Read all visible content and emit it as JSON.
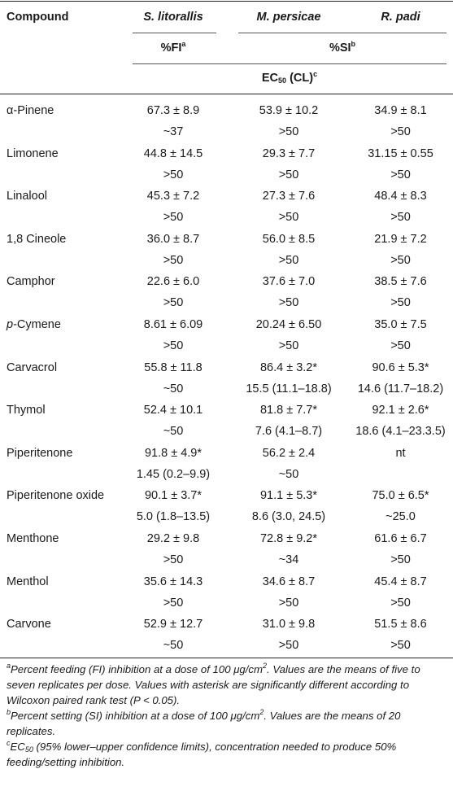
{
  "header": {
    "compound_label": "Compound",
    "species": [
      "S. litorallis",
      "M. persicae",
      "R. padi"
    ],
    "fi_label": "%FI",
    "fi_sup": "a",
    "si_label": "%SI",
    "si_sup": "b",
    "ec_label_pre": "EC",
    "ec_sub": "50",
    "ec_label_post": " (CL)",
    "ec_sup": "c"
  },
  "rows": [
    {
      "name": "α-Pinene",
      "s1": "67.3 ± 8.9",
      "s2": "~37",
      "m1": "53.9 ± 10.2",
      "m2": ">50",
      "r1": "34.9 ± 8.1",
      "r2": ">50"
    },
    {
      "name": "Limonene",
      "s1": "44.8 ± 14.5",
      "s2": ">50",
      "m1": "29.3 ± 7.7",
      "m2": ">50",
      "r1": "31.15 ± 0.55",
      "r2": ">50"
    },
    {
      "name": "Linalool",
      "s1": "45.3 ± 7.2",
      "s2": ">50",
      "m1": "27.3 ± 7.6",
      "m2": ">50",
      "r1": "48.4 ± 8.3",
      "r2": ">50"
    },
    {
      "name": "1,8 Cineole",
      "s1": "36.0 ± 8.7",
      "s2": ">50",
      "m1": "56.0 ± 8.5",
      "m2": ">50",
      "r1": "21.9 ± 7.2",
      "r2": ">50"
    },
    {
      "name": "Camphor",
      "s1": "22.6 ± 6.0",
      "s2": ">50",
      "m1": "37.6 ± 7.0",
      "m2": ">50",
      "r1": "38.5 ± 7.6",
      "r2": ">50"
    },
    {
      "name_prefix": "p",
      "name": "-Cymene",
      "s1": "8.61 ± 6.09",
      "s2": ">50",
      "m1": "20.24 ± 6.50",
      "m2": ">50",
      "r1": "35.0 ± 7.5",
      "r2": ">50"
    },
    {
      "name": "Carvacrol",
      "s1": "55.8 ± 11.8",
      "s2": "~50",
      "m1": "86.4 ± 3.2*",
      "m2": "15.5 (11.1–18.8)",
      "r1": "90.6 ± 5.3*",
      "r2": "14.6 (11.7–18.2)"
    },
    {
      "name": "Thymol",
      "s1": "52.4 ± 10.1",
      "s2": "~50",
      "m1": "81.8 ± 7.7*",
      "m2": "7.6 (4.1–8.7)",
      "r1": "92.1 ± 2.6*",
      "r2": "18.6 (4.1–23.3.5)"
    },
    {
      "name": "Piperitenone",
      "s1": "91.8 ± 4.9*",
      "s2": "1.45 (0.2–9.9)",
      "m1": "56.2 ± 2.4",
      "m2": "~50",
      "r1": "nt",
      "r2": ""
    },
    {
      "name": "Piperitenone oxide",
      "s1": "90.1 ± 3.7*",
      "s2": "5.0 (1.8–13.5)",
      "m1": "91.1 ± 5.3*",
      "m2": "8.6 (3.0, 24.5)",
      "r1": "75.0 ± 6.5*",
      "r2": "~25.0"
    },
    {
      "name": "Menthone",
      "s1": "29.2 ± 9.8",
      "s2": ">50",
      "m1": "72.8 ± 9.2*",
      "m2": "~34",
      "r1": "61.6 ± 6.7",
      "r2": ">50"
    },
    {
      "name": "Menthol",
      "s1": "35.6 ± 14.3",
      "s2": ">50",
      "m1": "34.6 ± 8.7",
      "m2": ">50",
      "r1": "45.4 ± 8.7",
      "r2": ">50"
    },
    {
      "name": "Carvone",
      "s1": "52.9 ± 12.7",
      "s2": "~50",
      "m1": "31.0 ± 9.8",
      "m2": ">50",
      "r1": "51.5 ± 8.6",
      "r2": ">50"
    }
  ],
  "footnotes": {
    "a": {
      "sup": "a",
      "p1": "Percent feeding (FI) inhibition at a dose of 100 μg/cm",
      "p1sup": "2",
      "p2": ". Values are the means of five to seven replicates per dose. Values with asterisk are significantly different according to Wilcoxon paired rank test (P < 0.05)."
    },
    "b": {
      "sup": "b",
      "p1": "Percent setting (SI) inhibition at a dose of 100 μg/cm",
      "p1sup": "2",
      "p2": ". Values are the means of 20 replicates."
    },
    "c": {
      "sup": "c",
      "p1": "EC",
      "p1sub": "50",
      "p2": " (95% lower–upper confidence limits), concentration needed to produce 50% feeding/setting inhibition."
    }
  }
}
